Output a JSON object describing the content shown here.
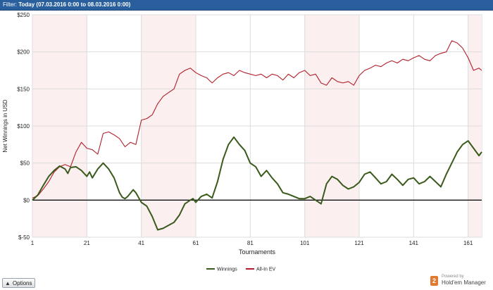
{
  "filter": {
    "label": "Filter:",
    "value": "Today (07.03.2016 0:00 to 08.03.2016 0:00)"
  },
  "options": {
    "label": "Options",
    "icon": "chevron-up-icon"
  },
  "brand": {
    "powered": "Powered by",
    "name": "Hold'em Manager",
    "badge": "2",
    "color": "#e07a2e"
  },
  "chart_data": {
    "type": "line",
    "title": "",
    "xlabel": "Tournaments",
    "ylabel": "Net Winnings in USD",
    "xlim": [
      1,
      166
    ],
    "ylim": [
      -50,
      250
    ],
    "xticks": [
      1,
      21,
      41,
      61,
      81,
      101,
      121,
      141,
      161
    ],
    "yticks": [
      -50,
      0,
      50,
      100,
      150,
      200,
      250
    ],
    "ytick_labels": [
      "$-50",
      "$0",
      "$50",
      "$100",
      "$150",
      "$200",
      "$250"
    ],
    "shaded_bands": [
      [
        1,
        21
      ],
      [
        41,
        61
      ],
      [
        101,
        121
      ],
      [
        161,
        166
      ]
    ],
    "grid": true,
    "zero_line": true,
    "legend_position": "bottom-center",
    "series": [
      {
        "name": "Winnings",
        "color": "#3a5a1c",
        "x": [
          1,
          3,
          5,
          7,
          9,
          11,
          13,
          14,
          15,
          17,
          19,
          21,
          22,
          23,
          25,
          27,
          29,
          31,
          33,
          34,
          35,
          36,
          38,
          39,
          41,
          43,
          45,
          47,
          49,
          51,
          53,
          55,
          57,
          59,
          60,
          61,
          63,
          65,
          67,
          69,
          71,
          73,
          75,
          77,
          79,
          81,
          83,
          85,
          87,
          89,
          91,
          93,
          95,
          97,
          99,
          101,
          103,
          105,
          107,
          109,
          111,
          113,
          115,
          117,
          119,
          121,
          123,
          125,
          127,
          129,
          131,
          133,
          135,
          137,
          139,
          141,
          143,
          145,
          147,
          149,
          151,
          153,
          155,
          157,
          159,
          161,
          163,
          165,
          166
        ],
        "values": [
          0,
          7,
          20,
          32,
          40,
          46,
          42,
          36,
          44,
          45,
          40,
          32,
          38,
          30,
          42,
          50,
          42,
          30,
          10,
          4,
          2,
          5,
          14,
          10,
          -3,
          -8,
          -22,
          -40,
          -38,
          -34,
          -30,
          -20,
          -5,
          0,
          2,
          -3,
          5,
          8,
          3,
          25,
          55,
          75,
          85,
          75,
          67,
          50,
          45,
          32,
          40,
          30,
          22,
          10,
          8,
          5,
          2,
          2,
          5,
          0,
          -5,
          22,
          32,
          28,
          20,
          15,
          18,
          24,
          35,
          38,
          30,
          22,
          25,
          35,
          28,
          20,
          28,
          30,
          22,
          25,
          32,
          25,
          18,
          35,
          50,
          65,
          75,
          80,
          70,
          60,
          65
        ]
      },
      {
        "name": "All-In EV",
        "color": "#b0202a",
        "x": [
          1,
          3,
          5,
          7,
          9,
          11,
          13,
          15,
          17,
          19,
          21,
          23,
          25,
          27,
          29,
          31,
          33,
          35,
          37,
          39,
          41,
          43,
          45,
          47,
          49,
          51,
          53,
          55,
          57,
          59,
          61,
          63,
          65,
          67,
          69,
          71,
          73,
          75,
          77,
          79,
          81,
          83,
          85,
          87,
          89,
          91,
          93,
          95,
          97,
          99,
          101,
          103,
          105,
          107,
          109,
          111,
          113,
          115,
          117,
          119,
          121,
          123,
          125,
          127,
          129,
          131,
          133,
          135,
          137,
          139,
          141,
          143,
          145,
          147,
          149,
          151,
          153,
          155,
          157,
          159,
          161,
          163,
          165,
          166
        ],
        "values": [
          3,
          6,
          15,
          25,
          38,
          45,
          48,
          45,
          65,
          78,
          70,
          68,
          62,
          90,
          92,
          88,
          83,
          72,
          78,
          75,
          108,
          110,
          115,
          130,
          140,
          145,
          150,
          170,
          175,
          178,
          172,
          168,
          165,
          158,
          165,
          170,
          172,
          168,
          175,
          172,
          170,
          168,
          170,
          165,
          170,
          168,
          162,
          170,
          165,
          172,
          175,
          168,
          170,
          158,
          155,
          165,
          160,
          158,
          160,
          155,
          168,
          175,
          178,
          182,
          180,
          185,
          188,
          185,
          190,
          188,
          192,
          195,
          190,
          188,
          195,
          198,
          200,
          215,
          212,
          205,
          192,
          175,
          178,
          175
        ]
      }
    ]
  }
}
